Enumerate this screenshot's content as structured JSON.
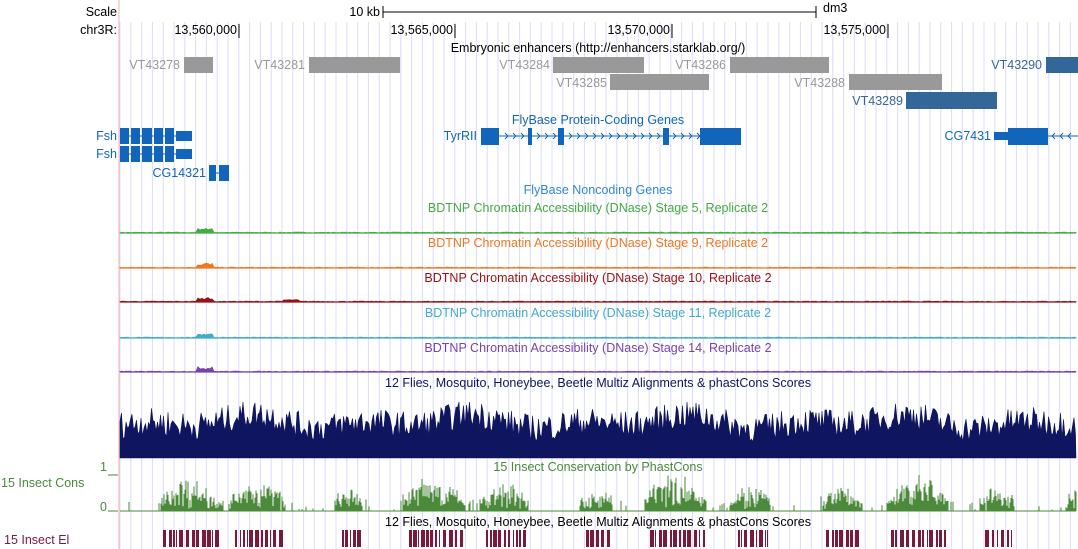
{
  "ruler": {
    "scale_label": "Scale",
    "scale_bar_label": "10 kb",
    "assembly": "dm3",
    "chrom_label": "chr3R:",
    "positions": [
      "13,560,000",
      "13,565,000",
      "13,570,000",
      "13,575,000"
    ]
  },
  "tracks": {
    "enhancers": {
      "title": "Embryonic enhancers (http://enhancers.starklab.org/)",
      "color": "#999999",
      "highlight_color": "#336699",
      "items": [
        {
          "label": "VT43278"
        },
        {
          "label": "VT43281"
        },
        {
          "label": "VT43284"
        },
        {
          "label": "VT43285"
        },
        {
          "label": "VT43286"
        },
        {
          "label": "VT43288"
        },
        {
          "label": "VT43290"
        },
        {
          "label": "VT43289"
        }
      ]
    },
    "coding_genes": {
      "title": "FlyBase Protein-Coding Genes",
      "color": "#1166bb",
      "genes": [
        {
          "label": "Fsh"
        },
        {
          "label": "Fsh"
        },
        {
          "label": "CG14321"
        },
        {
          "label": "TyrRII"
        },
        {
          "label": "CG7431"
        }
      ]
    },
    "noncoding_genes": {
      "title": "FlyBase Noncoding Genes",
      "color": "#3388cc"
    },
    "dnase": [
      {
        "title": "BDTNP Chromatin Accessibility (DNase) Stage 5, Replicate 2",
        "color": "#44aa44"
      },
      {
        "title": "BDTNP Chromatin Accessibility (DNase) Stage 9, Replicate 2",
        "color": "#ee7722"
      },
      {
        "title": "BDTNP Chromatin Accessibility (DNase) Stage 10, Replicate 2",
        "color": "#991111"
      },
      {
        "title": "BDTNP Chromatin Accessibility (DNase) Stage 11, Replicate 2",
        "color": "#44aacc"
      },
      {
        "title": "BDTNP Chromatin Accessibility (DNase) Stage 14, Replicate 2",
        "color": "#7744aa"
      }
    ],
    "multiz": {
      "title": "12 Flies, Mosquito, Honeybee, Beetle Multiz Alignments & phastCons Scores",
      "color": "#101560"
    },
    "phastcons": {
      "title": "15 Insect Conservation by PhastCons",
      "side_label": "15 Insect Cons",
      "axis_max": "1",
      "axis_min": "0",
      "color": "#4a8a3a"
    },
    "elements": {
      "title": "12 Flies, Mosquito, Honeybee, Beetle Multiz Alignments & phastCons Scores",
      "side_label": "15 Insect El",
      "color": "#7a1a3a"
    }
  }
}
